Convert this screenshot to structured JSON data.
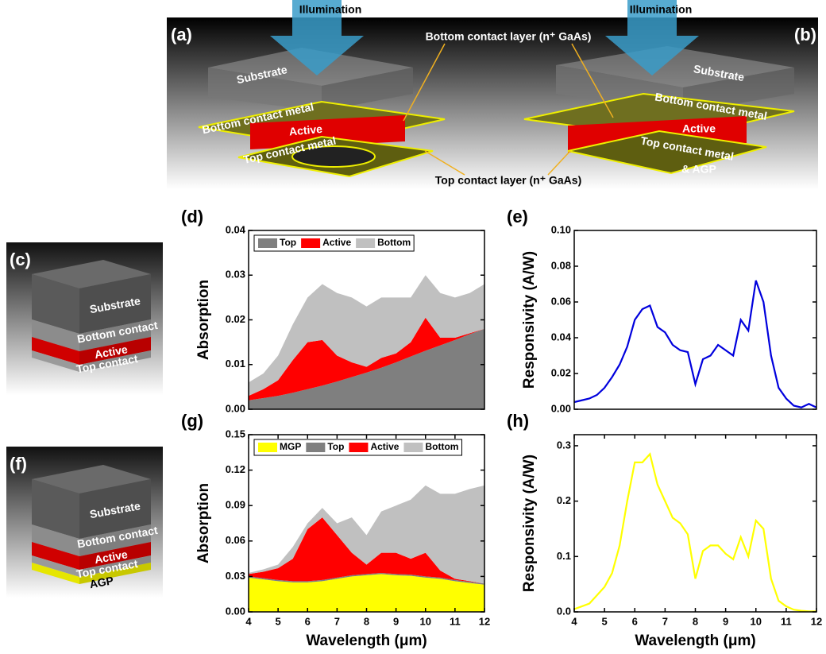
{
  "diagrams": [
    {
      "panel": "(a)",
      "illumination": "Illumination",
      "labels": [
        "Substrate",
        "Bottom contact metal",
        "Active",
        "Top contact metal"
      ]
    },
    {
      "panel": "(b)",
      "illumination": "Illumination",
      "labels": [
        "Substrate",
        "Bottom contact metal",
        "Active",
        "Top contact metal",
        "& AGP"
      ]
    },
    {
      "panel": "(c)",
      "labels": [
        "Substrate",
        "Bottom contact",
        "Active",
        "Top contact"
      ]
    },
    {
      "panel": "(f)",
      "labels": [
        "Substrate",
        "Bottom contact",
        "Active",
        "Top contact",
        "AGP"
      ]
    }
  ],
  "callouts": [
    "Bottom contact layer (n⁺ GaAs)",
    "Top contact layer (n⁺ GaAs)"
  ],
  "chart_data": [
    {
      "type": "area",
      "panel": "(d)",
      "ylabel": "Absorption",
      "x": [
        4,
        4.5,
        5,
        5.5,
        6,
        6.5,
        7,
        7.5,
        8,
        8.5,
        9,
        9.5,
        10,
        10.5,
        11,
        11.5,
        12
      ],
      "series": [
        {
          "name": "Top",
          "color": "#7f7f7f",
          "values": [
            0.002,
            0.0025,
            0.003,
            0.0037,
            0.0045,
            0.0053,
            0.0062,
            0.0072,
            0.0082,
            0.0093,
            0.0105,
            0.0118,
            0.0131,
            0.0143,
            0.0155,
            0.0168,
            0.018
          ]
        },
        {
          "name": "Active",
          "color": "#ff0000",
          "values": [
            0.001,
            0.002,
            0.0035,
            0.0073,
            0.0105,
            0.0102,
            0.0058,
            0.0033,
            0.0013,
            0.0022,
            0.002,
            0.0032,
            0.0074,
            0.0017,
            0.0005,
            0.0002,
            0
          ]
        },
        {
          "name": "Bottom",
          "color": "#c0c0c0",
          "values": [
            0.003,
            0.0035,
            0.0055,
            0.008,
            0.01,
            0.0125,
            0.014,
            0.0145,
            0.0135,
            0.0135,
            0.0125,
            0.01,
            0.0095,
            0.01,
            0.009,
            0.009,
            0.01
          ]
        }
      ],
      "xlim": [
        4,
        12
      ],
      "ylim": [
        0,
        0.04
      ],
      "yticks": [
        {
          "value": 0,
          "label": "0.00"
        },
        {
          "value": 0.01,
          "label": "0.01"
        },
        {
          "value": 0.02,
          "label": "0.02"
        },
        {
          "value": 0.03,
          "label": "0.03"
        },
        {
          "value": 0.04,
          "label": "0.04"
        }
      ],
      "legend": "top-left"
    },
    {
      "type": "line",
      "panel": "(e)",
      "ylabel": "Responsivity (A/W)",
      "x": [
        4,
        4.25,
        4.5,
        4.75,
        5,
        5.25,
        5.5,
        5.75,
        6,
        6.25,
        6.5,
        6.75,
        7,
        7.25,
        7.5,
        7.75,
        8,
        8.25,
        8.5,
        8.75,
        9,
        9.25,
        9.5,
        9.75,
        10,
        10.25,
        10.5,
        10.75,
        11,
        11.25,
        11.5,
        11.75,
        12
      ],
      "series": [
        {
          "color": "#0000dd",
          "values": [
            0.004,
            0.005,
            0.006,
            0.008,
            0.012,
            0.018,
            0.025,
            0.035,
            0.05,
            0.056,
            0.058,
            0.046,
            0.043,
            0.036,
            0.033,
            0.032,
            0.014,
            0.028,
            0.03,
            0.036,
            0.033,
            0.03,
            0.05,
            0.044,
            0.072,
            0.06,
            0.03,
            0.012,
            0.006,
            0.002,
            0.001,
            0.003,
            0.001
          ]
        }
      ],
      "xlim": [
        4,
        12
      ],
      "ylim": [
        0,
        0.1
      ],
      "yticks": [
        {
          "value": 0,
          "label": "0.00"
        },
        {
          "value": 0.02,
          "label": "0.02"
        },
        {
          "value": 0.04,
          "label": "0.04"
        },
        {
          "value": 0.06,
          "label": "0.06"
        },
        {
          "value": 0.08,
          "label": "0.08"
        },
        {
          "value": 0.1,
          "label": "0.10"
        }
      ]
    },
    {
      "type": "area",
      "panel": "(g)",
      "ylabel": "Absorption",
      "xlabel": "Wavelength (μm)",
      "x": [
        4,
        4.5,
        5,
        5.5,
        6,
        6.5,
        7,
        7.5,
        8,
        8.5,
        9,
        9.5,
        10,
        10.5,
        11,
        11.5,
        12
      ],
      "series": [
        {
          "name": "MGP",
          "color": "#ffff00",
          "values": [
            0.029,
            0.0275,
            0.026,
            0.025,
            0.025,
            0.026,
            0.028,
            0.03,
            0.031,
            0.032,
            0.031,
            0.0305,
            0.029,
            0.028,
            0.026,
            0.0245,
            0.023
          ]
        },
        {
          "name": "Top",
          "color": "#7f7f7f",
          "values": [
            0.001,
            0.001,
            0.001,
            0.001,
            0.001,
            0.001,
            0.001,
            0.001,
            0.001,
            0.001,
            0.001,
            0.001,
            0.001,
            0.001,
            0.001,
            0.001,
            0.001
          ]
        },
        {
          "name": "Active",
          "color": "#ff0000",
          "values": [
            0.002,
            0.0055,
            0.01,
            0.019,
            0.044,
            0.053,
            0.036,
            0.019,
            0.008,
            0.017,
            0.018,
            0.0135,
            0.02,
            0.006,
            0.001,
            0.0005,
            0
          ]
        },
        {
          "name": "Bottom",
          "color": "#c0c0c0",
          "values": [
            0.001,
            0.002,
            0.003,
            0.01,
            0.005,
            0.008,
            0.01,
            0.03,
            0.025,
            0.035,
            0.04,
            0.05,
            0.057,
            0.065,
            0.072,
            0.078,
            0.083
          ]
        }
      ],
      "xlim": [
        4,
        12
      ],
      "xticks": [
        4,
        5,
        6,
        7,
        8,
        9,
        10,
        11,
        12
      ],
      "ylim": [
        0,
        0.15
      ],
      "yticks": [
        {
          "value": 0,
          "label": "0.00"
        },
        {
          "value": 0.03,
          "label": "0.03"
        },
        {
          "value": 0.06,
          "label": "0.06"
        },
        {
          "value": 0.09,
          "label": "0.09"
        },
        {
          "value": 0.12,
          "label": "0.12"
        },
        {
          "value": 0.15,
          "label": "0.15"
        }
      ],
      "legend": "top-left"
    },
    {
      "type": "line",
      "panel": "(h)",
      "ylabel": "Responsivity (A/W)",
      "xlabel": "Wavelength (μm)",
      "x": [
        4,
        4.25,
        4.5,
        4.75,
        5,
        5.25,
        5.5,
        5.75,
        6,
        6.25,
        6.5,
        6.75,
        7,
        7.25,
        7.5,
        7.75,
        8,
        8.25,
        8.5,
        8.75,
        9,
        9.25,
        9.5,
        9.75,
        10,
        10.25,
        10.5,
        10.75,
        11,
        11.25,
        11.5,
        11.75,
        12
      ],
      "series": [
        {
          "color": "#ffff00",
          "values": [
            0.005,
            0.01,
            0.015,
            0.03,
            0.045,
            0.07,
            0.12,
            0.2,
            0.27,
            0.27,
            0.285,
            0.23,
            0.2,
            0.17,
            0.16,
            0.14,
            0.06,
            0.11,
            0.12,
            0.12,
            0.105,
            0.095,
            0.135,
            0.1,
            0.165,
            0.15,
            0.06,
            0.02,
            0.01,
            0.004,
            0.002,
            0.001,
            0.001
          ]
        }
      ],
      "xlim": [
        4,
        12
      ],
      "xticks": [
        4,
        5,
        6,
        7,
        8,
        9,
        10,
        11,
        12
      ],
      "ylim": [
        0,
        0.32
      ],
      "yticks": [
        {
          "value": 0,
          "label": "0.0"
        },
        {
          "value": 0.1,
          "label": "0.1"
        },
        {
          "value": 0.2,
          "label": "0.2"
        },
        {
          "value": 0.3,
          "label": "0.3"
        }
      ]
    }
  ]
}
